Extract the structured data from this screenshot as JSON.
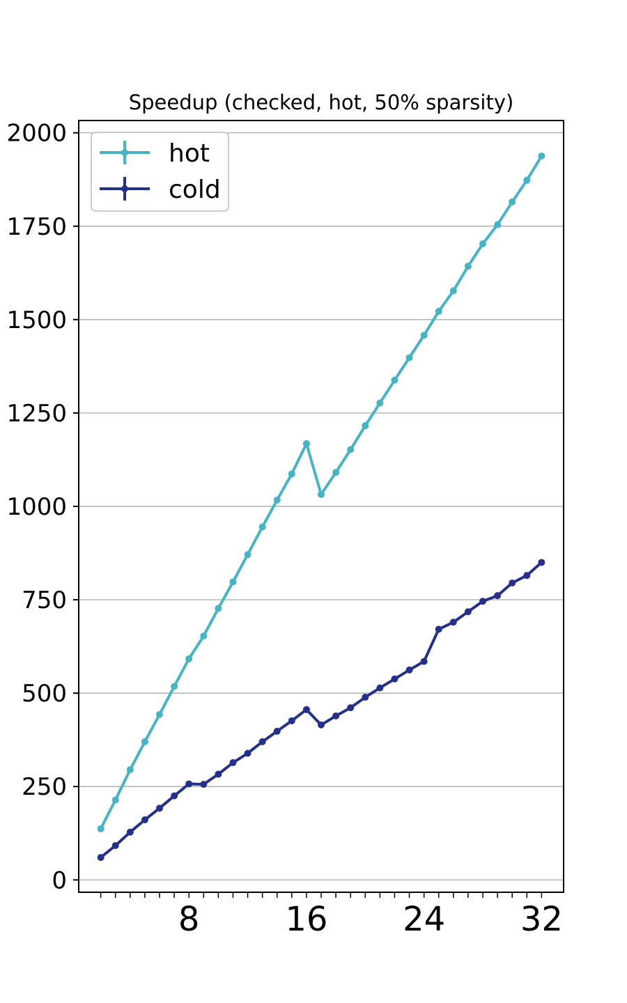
{
  "chart_data": {
    "type": "line",
    "title": "Speedup (checked, hot, 50% sparsity)",
    "xlabel": "",
    "ylabel": "",
    "x": [
      2,
      3,
      4,
      5,
      6,
      7,
      8,
      9,
      10,
      11,
      12,
      13,
      14,
      15,
      16,
      17,
      18,
      19,
      20,
      21,
      22,
      23,
      24,
      25,
      26,
      27,
      28,
      29,
      30,
      31,
      32
    ],
    "xticks": [
      8,
      16,
      24,
      32
    ],
    "yticks": [
      0,
      250,
      500,
      750,
      1000,
      1250,
      1500,
      1750,
      2000
    ],
    "xlim": [
      0.5,
      33.5
    ],
    "ylim": [
      -33,
      2033
    ],
    "grid": "y",
    "legend_position": "upper-left",
    "series": [
      {
        "name": "hot",
        "color": "#45b5c4",
        "values": [
          137,
          214,
          295,
          370,
          443,
          518,
          592,
          653,
          727,
          798,
          871,
          945,
          1017,
          1087,
          1168,
          1032,
          1091,
          1152,
          1216,
          1277,
          1338,
          1398,
          1458,
          1522,
          1577,
          1643,
          1703,
          1754,
          1815,
          1873,
          1938
        ]
      },
      {
        "name": "cold",
        "color": "#25308a",
        "values": [
          60,
          92,
          128,
          161,
          192,
          225,
          257,
          256,
          283,
          314,
          339,
          370,
          398,
          426,
          456,
          415,
          439,
          461,
          489,
          514,
          538,
          562,
          585,
          671,
          690,
          718,
          746,
          761,
          795,
          815,
          850
        ]
      }
    ]
  }
}
